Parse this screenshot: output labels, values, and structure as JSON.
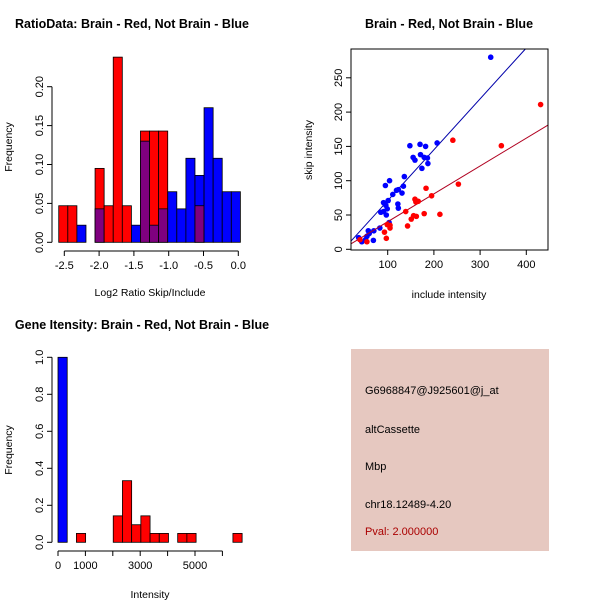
{
  "colors": {
    "red": "#ff0000",
    "blue": "#0000ff",
    "overlap": "#7f007f",
    "info_bg": "#e6c8c0",
    "pval": "#aa0000",
    "red_line": "#b00020",
    "blue_line": "#0000aa"
  },
  "chart_data": [
    {
      "type": "bar",
      "title": "RatioData: Brain - Red, Not Brain - Blue",
      "xlabel": "Log2 Ratio Skip/Include",
      "ylabel": "Frequency",
      "bin_start": -2.58,
      "bin_width": 0.1305,
      "xticks": [
        "-2.5",
        "-2.0",
        "-1.5",
        "-1.0",
        "-0.5",
        "0.0"
      ],
      "xtick_values": [
        -2.5,
        -2.0,
        -1.5,
        -1.0,
        -0.5,
        0.0
      ],
      "yticks": [
        "0.00",
        "0.05",
        "0.10",
        "0.15",
        "0.20"
      ],
      "ytick_values": [
        0,
        0.05,
        0.1,
        0.15,
        0.2
      ],
      "series": [
        {
          "name": "Brain",
          "color": "red",
          "values": [
            0.047,
            0.047,
            0,
            0,
            0.095,
            0.047,
            0.238,
            0.047,
            0,
            0.143,
            0.143,
            0.143,
            0,
            0,
            0,
            0.047,
            0,
            0,
            0,
            0
          ]
        },
        {
          "name": "Not Brain",
          "color": "blue",
          "values": [
            0,
            0,
            0.022,
            0,
            0.043,
            0,
            0,
            0,
            0.022,
            0.13,
            0.022,
            0.043,
            0.065,
            0.043,
            0.108,
            0.086,
            0.173,
            0.108,
            0.065,
            0.065
          ]
        }
      ]
    },
    {
      "type": "scatter",
      "title": "Brain - Red, Not Brain - Blue",
      "xlabel": "include intensity",
      "ylabel": "skip intensity",
      "xlim": [
        20.6,
        447
      ],
      "ylim": [
        -1,
        292
      ],
      "xticks": [
        "100",
        "200",
        "300",
        "400"
      ],
      "xtick_values": [
        100,
        200,
        300,
        400
      ],
      "yticks": [
        "0",
        "50",
        "100",
        "150",
        "200",
        "250"
      ],
      "ytick_values": [
        0,
        50,
        100,
        150,
        200,
        250
      ],
      "series": [
        {
          "name": "Not Brain",
          "color": "blue",
          "fit": {
            "slope": 0.742,
            "intercept": -3.3
          },
          "points": [
            [
              323,
              280
            ],
            [
              207,
              155
            ],
            [
              148,
              151
            ],
            [
              170,
              153
            ],
            [
              182,
              150
            ],
            [
              155,
              134
            ],
            [
              159,
              130
            ],
            [
              171,
              138
            ],
            [
              179,
              134
            ],
            [
              186,
              133
            ],
            [
              187,
              125
            ],
            [
              174,
              118
            ],
            [
              136,
              106
            ],
            [
              104,
              100
            ],
            [
              95,
              93
            ],
            [
              134,
              92
            ],
            [
              123,
              87
            ],
            [
              119,
              86
            ],
            [
              131,
              82
            ],
            [
              111,
              80
            ],
            [
              101,
              71
            ],
            [
              91,
              68
            ],
            [
              96,
              64
            ],
            [
              122,
              66
            ],
            [
              123,
              60
            ],
            [
              99,
              59
            ],
            [
              85,
              54
            ],
            [
              91,
              55
            ],
            [
              97,
              50
            ],
            [
              103,
              39
            ],
            [
              83,
              31
            ],
            [
              70,
              27
            ],
            [
              60,
              23
            ],
            [
              55,
              19
            ],
            [
              52,
              14
            ],
            [
              37,
              17
            ],
            [
              44,
              11
            ],
            [
              69,
              13
            ],
            [
              58,
              27
            ]
          ]
        },
        {
          "name": "Brain",
          "color": "red",
          "fit": {
            "slope": 0.406,
            "intercept": -0.4
          },
          "points": [
            [
              431,
              211
            ],
            [
              241,
              159
            ],
            [
              346,
              151
            ],
            [
              253,
              95
            ],
            [
              183,
              89
            ],
            [
              195,
              78
            ],
            [
              159,
              73
            ],
            [
              166,
              70
            ],
            [
              161,
              69
            ],
            [
              139,
              55
            ],
            [
              179,
              52
            ],
            [
              213,
              51
            ],
            [
              156,
              49
            ],
            [
              162,
              48
            ],
            [
              151,
              44
            ],
            [
              143,
              34
            ],
            [
              105,
              35
            ],
            [
              105,
              31
            ],
            [
              93,
              25
            ],
            [
              97,
              16
            ],
            [
              55,
              11
            ],
            [
              40,
              14
            ],
            [
              99,
              36
            ]
          ]
        }
      ]
    },
    {
      "type": "bar",
      "title": "Gene Itensity: Brain - Red, Not Brain - Blue",
      "xlabel": "Intensity",
      "ylabel": "Frequency",
      "bin_start": 0,
      "bin_width": 336,
      "xticks": [
        "0",
        "1000",
        "",
        "3000",
        "",
        "5000",
        ""
      ],
      "xtick_values": [
        0,
        1000,
        2000,
        3000,
        4000,
        5000,
        6000
      ],
      "yticks": [
        "0.0",
        "0.2",
        "0.4",
        "0.6",
        "0.8",
        "1.0"
      ],
      "ytick_values": [
        0,
        0.2,
        0.4,
        0.6,
        0.8,
        1.0
      ],
      "series": [
        {
          "name": "Brain",
          "color": "red",
          "values": [
            0,
            0,
            0.048,
            0,
            0,
            0,
            0.143,
            0.333,
            0.095,
            0.143,
            0.048,
            0.048,
            0,
            0.048,
            0.048,
            0,
            0,
            0,
            0,
            0.048
          ]
        },
        {
          "name": "Not Brain",
          "color": "blue",
          "values": [
            1.0,
            0,
            0,
            0,
            0,
            0,
            0,
            0,
            0,
            0,
            0,
            0,
            0,
            0,
            0,
            0,
            0,
            0,
            0,
            0
          ]
        }
      ]
    }
  ],
  "info": {
    "probe": "G6968847@J925601@j_at",
    "event": "altCassette",
    "gene": "Mbp",
    "location": "chr18.12489-4.20",
    "pval": "Pval: 2.000000"
  }
}
